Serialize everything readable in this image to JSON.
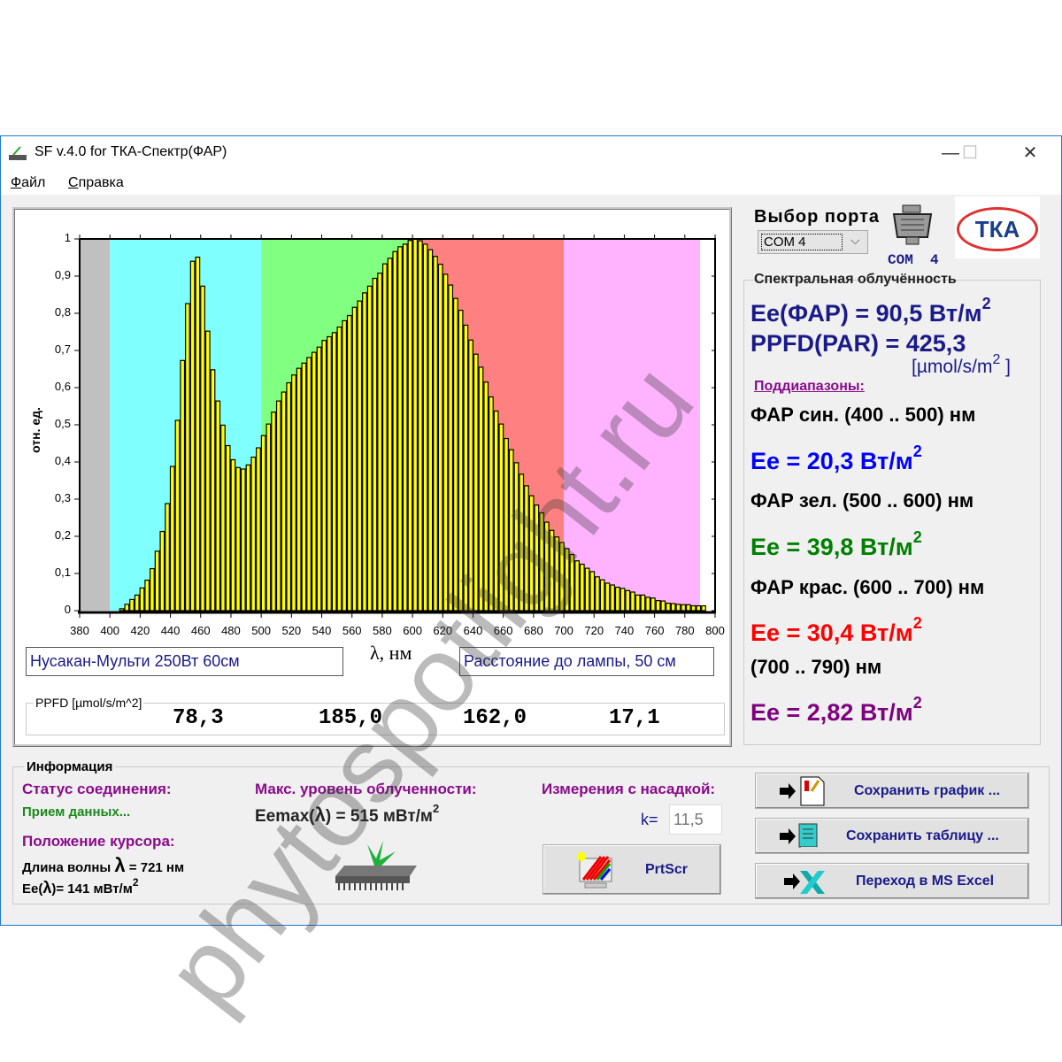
{
  "window": {
    "title": "SF v.4.0 for ТКА-Спектр(ФАР)",
    "app_icon": "device-icon",
    "minimize": "—",
    "maximize": "☐",
    "close": "✕"
  },
  "menu": [
    {
      "accel": "Ф",
      "rest": "айл"
    },
    {
      "accel": "С",
      "rest": "правка"
    }
  ],
  "chart_data": {
    "type": "bar",
    "xlabel": "λ, нм",
    "ylabel": "отн. ед.",
    "xlim": [
      380,
      800
    ],
    "ylim": [
      0,
      1
    ],
    "x_ticks": [
      "380",
      "400",
      "420",
      "440",
      "460",
      "480",
      "500",
      "520",
      "540",
      "560",
      "580",
      "600",
      "620",
      "640",
      "660",
      "680",
      "700",
      "720",
      "740",
      "760",
      "780",
      "800"
    ],
    "y_ticks": [
      "0",
      "0,1",
      "0,2",
      "0,3",
      "0,4",
      "0,5",
      "0,6",
      "0,7",
      "0,8",
      "0,9",
      "1"
    ],
    "bar_x_range": [
      404.5,
      792.4
    ],
    "values": [
      0,
      0.005,
      0.017,
      0.03,
      0.042,
      0.061,
      0.082,
      0.113,
      0.16,
      0.213,
      0.288,
      0.388,
      0.512,
      0.673,
      0.826,
      0.94,
      0.951,
      0.873,
      0.752,
      0.648,
      0.564,
      0.499,
      0.444,
      0.406,
      0.385,
      0.381,
      0.392,
      0.413,
      0.438,
      0.471,
      0.502,
      0.534,
      0.564,
      0.588,
      0.613,
      0.634,
      0.652,
      0.666,
      0.681,
      0.695,
      0.709,
      0.727,
      0.737,
      0.748,
      0.763,
      0.78,
      0.794,
      0.816,
      0.833,
      0.855,
      0.873,
      0.894,
      0.908,
      0.933,
      0.948,
      0.966,
      0.979,
      0.986,
      0.996,
      1.0,
      0.995,
      0.986,
      0.971,
      0.953,
      0.932,
      0.905,
      0.876,
      0.84,
      0.808,
      0.768,
      0.728,
      0.69,
      0.655,
      0.615,
      0.575,
      0.537,
      0.502,
      0.463,
      0.433,
      0.398,
      0.367,
      0.336,
      0.309,
      0.284,
      0.263,
      0.238,
      0.216,
      0.198,
      0.183,
      0.167,
      0.151,
      0.134,
      0.125,
      0.114,
      0.105,
      0.091,
      0.083,
      0.074,
      0.069,
      0.063,
      0.06,
      0.054,
      0.05,
      0.042,
      0.042,
      0.036,
      0.034,
      0.027,
      0.026,
      0.02,
      0.019,
      0.017,
      0.016,
      0.016,
      0.013,
      0.013,
      0.013
    ],
    "bar_color": "#ffff00",
    "bands": [
      {
        "from": 380,
        "to": 400,
        "color": "#c0c0c0"
      },
      {
        "from": 400,
        "to": 500,
        "color": "#80ffff"
      },
      {
        "from": 500,
        "to": 600,
        "color": "#80ff80"
      },
      {
        "from": 600,
        "to": 700,
        "color": "#ff8080"
      },
      {
        "from": 700,
        "to": 790,
        "color": "#ffb3ff"
      }
    ],
    "grid": false
  },
  "chart_panel": {
    "lamp_label": "Нусакан-Мульти 250Вт 60см",
    "distance_label": "Расстояние до лампы, 50 см",
    "ppfd_title": "PPFD [µmol/s/m^2]",
    "ppfd_values": [
      {
        "value": "78,3",
        "color": "#0000ff"
      },
      {
        "value": "185,0",
        "color": "#00e000"
      },
      {
        "value": "162,0",
        "color": "#ff0000"
      },
      {
        "value": "17,1",
        "color": "#800080"
      }
    ]
  },
  "port": {
    "title": "Выбор порта",
    "selected": "COM 4",
    "status": "COM  4",
    "icon": "serial-port-icon"
  },
  "logo": {
    "text": "ТКА"
  },
  "irradiance": {
    "title": "Спектральная облучённость",
    "ee_par": "Ee(ФАР) = 90,5 Вт/м",
    "sup": "2",
    "ppfd": "PPFD(PAR) = 425,3",
    "ppfd_unit": "[µmol/s/m",
    "ppfd_unit_end": " ]",
    "subranges_title": "Поддиапазоны:",
    "bands": [
      {
        "label": "ФАР син. (400 .. 500) нм",
        "value": "Ee = 20,3 Вт/м",
        "color": "#0000ff"
      },
      {
        "label": "ФАР зел. (500 .. 600) нм",
        "value": "Ee = 39,8 Вт/м",
        "color": "#008000"
      },
      {
        "label": "ФАР крас. (600 .. 700) нм",
        "value": "Ee = 30,4 Вт/м",
        "color": "#ff0000"
      },
      {
        "label": "(700 .. 790) нм",
        "value": "Ee = 2,82 Вт/м",
        "color": "#800080"
      }
    ]
  },
  "info": {
    "title": "Информация",
    "status_label": "Статус соединения:",
    "status_value": "Прием данных...",
    "cursor_label": "Положение курсора:",
    "wavelength_pre": "Длина волны ",
    "lambda": "λ",
    "wavelength_post": " = 721 нм",
    "ee_pre": "Ee(",
    "ee_post": ")= 141 мВт/м",
    "sup": "2",
    "max_label": "Макс. уровень облученности:",
    "max_pre": "Eemax(",
    "max_post": ") = 515 мВт/м"
  },
  "measure": {
    "label": "Измерения с насадкой:",
    "k_label": "k=",
    "k_value": "11,5"
  },
  "buttons": {
    "prtscr": "PrtScr",
    "save_graph": "Сохранить график ...",
    "save_table": "Сохранить таблицу ...",
    "excel": "Переход в MS Excel"
  },
  "watermark": "phytospotlight.ru"
}
